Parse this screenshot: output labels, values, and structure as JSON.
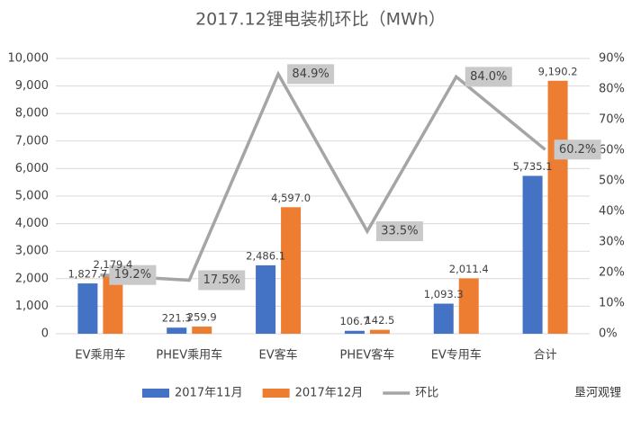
{
  "chart_data": {
    "type": "bar",
    "title": "2017.12锂电装机环比（MWh）",
    "categories": [
      "EV乘用车",
      "PHEV乘用车",
      "EV客车",
      "PHEV客车",
      "EV专用车",
      "合计"
    ],
    "series": [
      {
        "name": "2017年11月",
        "color": "#4472c4",
        "label_color": "#404040",
        "values": [
          1827.7,
          221.3,
          2486.1,
          106.7,
          1093.3,
          5735.1
        ],
        "value_labels": [
          "1,827.7",
          "221.3",
          "2,486.1",
          "106.7",
          "1,093.3",
          "5,735.1"
        ]
      },
      {
        "name": "2017年12月",
        "color": "#ed7d31",
        "label_color": "#c00000",
        "values": [
          2179.4,
          259.9,
          4597.0,
          142.5,
          2011.4,
          9190.2
        ],
        "value_labels": [
          "2,179.4",
          "259.9",
          "4,597.0",
          "142.5",
          "2,011.4",
          "9,190.2"
        ]
      },
      {
        "name": "环比",
        "type": "line",
        "axis": "y2",
        "color": "#a5a5a5",
        "label_color": "#404040",
        "values": [
          19.2,
          17.5,
          84.9,
          33.5,
          84.0,
          60.2
        ],
        "value_labels": [
          "19.2%",
          "17.5%",
          "84.9%",
          "33.5%",
          "84.0%",
          "60.2%"
        ]
      }
    ],
    "ylim": [
      0,
      10000
    ],
    "yticks": [
      0,
      {
        "value": 1000,
        "label": "1,000"
      },
      {
        "value": 2000,
        "label": "2,000"
      },
      {
        "value": 3000,
        "label": "3,000"
      },
      {
        "value": 4000,
        "label": "4,000"
      },
      {
        "value": 5000,
        "label": "5,000"
      },
      {
        "value": 6000,
        "label": "6,000"
      },
      {
        "value": 7000,
        "label": "7,000"
      },
      {
        "value": 8000,
        "label": "8,000"
      },
      {
        "value": 9000,
        "label": "9,000"
      },
      {
        "value": 10000,
        "label": "10,000"
      }
    ],
    "y2lim": [
      0,
      90
    ],
    "y2ticks": [
      {
        "value": 0,
        "label": "0%"
      },
      {
        "value": 10,
        "label": "10%"
      },
      {
        "value": 20,
        "label": "20%"
      },
      {
        "value": 30,
        "label": "30%"
      },
      {
        "value": 40,
        "label": "40%"
      },
      {
        "value": 50,
        "label": "50%"
      },
      {
        "value": 60,
        "label": "60%"
      },
      {
        "value": 70,
        "label": "70%"
      },
      {
        "value": 80,
        "label": "80%"
      },
      {
        "value": 90,
        "label": "90%"
      }
    ],
    "grid": true,
    "legend": "bottom",
    "watermark": "垦河观锂"
  }
}
